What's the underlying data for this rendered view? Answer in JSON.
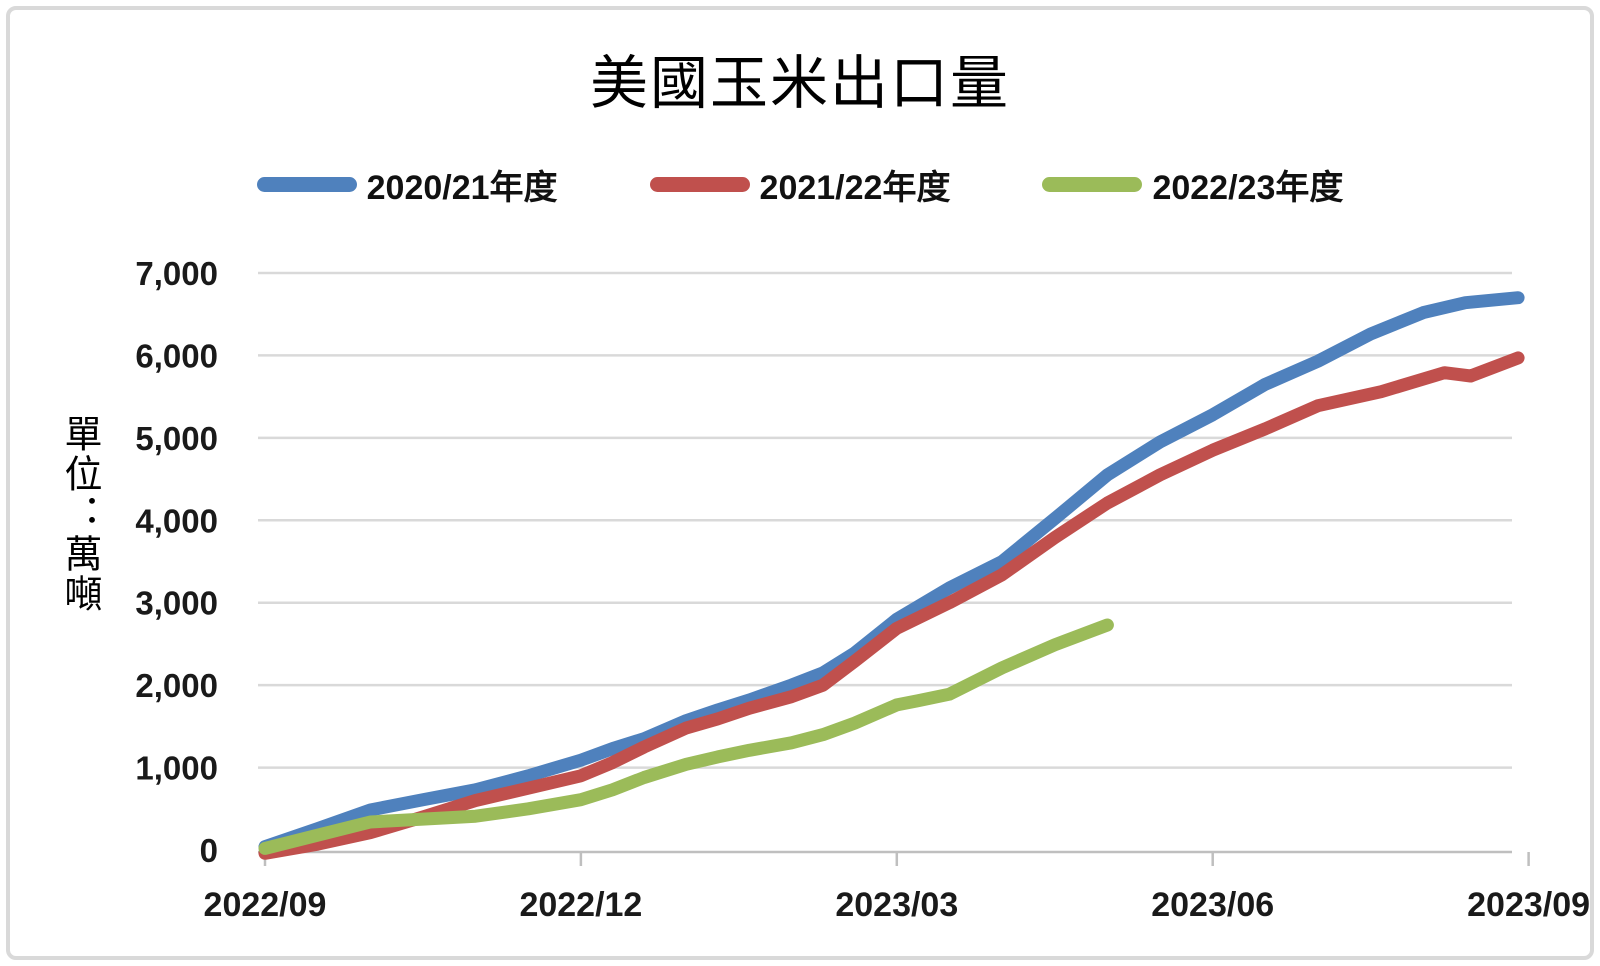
{
  "title": "美國玉米出口量",
  "legend": [
    {
      "label": "2020/21年度",
      "color": "#4F81BD"
    },
    {
      "label": "2021/22年度",
      "color": "#C0504D"
    },
    {
      "label": "2022/23年度",
      "color": "#9BBB59"
    }
  ],
  "y_axis": {
    "unit_label": "單位：萬噸",
    "tick_labels": [
      "7,000",
      "6,000",
      "5,000",
      "4,000",
      "3,000",
      "2,000",
      "1,000",
      "0"
    ]
  },
  "x_axis": {
    "tick_labels": [
      "2022/09",
      "2022/12",
      "2023/03",
      "2023/06",
      "2023/09"
    ]
  },
  "chart_data": {
    "type": "line",
    "title": "美國玉米出口量",
    "ylabel": "單位：萬噸",
    "ylim": [
      0,
      7000
    ],
    "y_tick_step": 1000,
    "grid": true,
    "legend_position": "top",
    "x_unit": "months_after_2022_09",
    "x_tick_months": [
      0,
      3,
      6,
      9,
      12
    ],
    "x_tick_labels": [
      "2022/09",
      "2022/12",
      "2023/03",
      "2023/06",
      "2023/09"
    ],
    "series": [
      {
        "name": "2020/21年度",
        "color": "#4F81BD",
        "points": [
          [
            0,
            40
          ],
          [
            0.5,
            260
          ],
          [
            1,
            485
          ],
          [
            1.5,
            610
          ],
          [
            2,
            730
          ],
          [
            2.5,
            900
          ],
          [
            3,
            1090
          ],
          [
            3.3,
            1230
          ],
          [
            3.6,
            1350
          ],
          [
            4,
            1570
          ],
          [
            4.3,
            1700
          ],
          [
            4.6,
            1820
          ],
          [
            5,
            2000
          ],
          [
            5.3,
            2150
          ],
          [
            5.6,
            2390
          ],
          [
            6,
            2800
          ],
          [
            6.5,
            3180
          ],
          [
            7,
            3500
          ],
          [
            7.5,
            4020
          ],
          [
            8,
            4550
          ],
          [
            8.5,
            4950
          ],
          [
            9,
            5280
          ],
          [
            9.5,
            5650
          ],
          [
            10,
            5930
          ],
          [
            10.5,
            6260
          ],
          [
            11,
            6520
          ],
          [
            11.4,
            6640
          ],
          [
            11.9,
            6700
          ]
        ]
      },
      {
        "name": "2021/22年度",
        "color": "#C0504D",
        "points": [
          [
            0,
            -40
          ],
          [
            0.5,
            70
          ],
          [
            1,
            210
          ],
          [
            1.5,
            400
          ],
          [
            2,
            600
          ],
          [
            2.5,
            750
          ],
          [
            3,
            900
          ],
          [
            3.3,
            1060
          ],
          [
            3.6,
            1250
          ],
          [
            4,
            1480
          ],
          [
            4.3,
            1590
          ],
          [
            4.6,
            1720
          ],
          [
            5,
            1860
          ],
          [
            5.3,
            2000
          ],
          [
            5.6,
            2290
          ],
          [
            6,
            2690
          ],
          [
            6.5,
            3000
          ],
          [
            7,
            3340
          ],
          [
            7.5,
            3790
          ],
          [
            8,
            4210
          ],
          [
            8.5,
            4550
          ],
          [
            9,
            4850
          ],
          [
            9.5,
            5110
          ],
          [
            10,
            5390
          ],
          [
            10.6,
            5560
          ],
          [
            11.2,
            5790
          ],
          [
            11.45,
            5750
          ],
          [
            11.9,
            5970
          ]
        ]
      },
      {
        "name": "2022/23年度",
        "color": "#9BBB59",
        "points": [
          [
            0,
            20
          ],
          [
            0.5,
            180
          ],
          [
            1,
            340
          ],
          [
            1.5,
            375
          ],
          [
            2,
            410
          ],
          [
            2.5,
            500
          ],
          [
            3,
            610
          ],
          [
            3.3,
            730
          ],
          [
            3.6,
            880
          ],
          [
            4,
            1040
          ],
          [
            4.3,
            1130
          ],
          [
            4.6,
            1210
          ],
          [
            5,
            1300
          ],
          [
            5.3,
            1400
          ],
          [
            5.6,
            1540
          ],
          [
            6,
            1760
          ],
          [
            6.2,
            1810
          ],
          [
            6.5,
            1890
          ],
          [
            7,
            2210
          ],
          [
            7.5,
            2490
          ],
          [
            8,
            2730
          ]
        ]
      }
    ]
  },
  "style_colors": {
    "gridline": "#d9d9d9",
    "axis_line": "#bfbfbf",
    "tick_text": "#1a1a1a"
  }
}
